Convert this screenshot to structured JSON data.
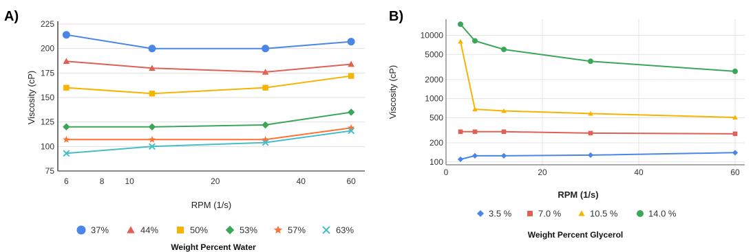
{
  "chart_data": [
    {
      "panel_label": "A)",
      "type": "line",
      "x_scale": "log",
      "xlabel": "RPM (1/s)",
      "ylabel": "Viscosity (cP)",
      "xlim": [
        5.6,
        67
      ],
      "ylim": [
        75,
        225
      ],
      "x_ticks": [
        6,
        8,
        10,
        20,
        40,
        60
      ],
      "y_ticks": [
        75,
        100,
        125,
        150,
        175,
        200,
        225
      ],
      "grid": true,
      "legend_position": "bottom",
      "legend_title": "Weight Percent Water",
      "series": [
        {
          "name": "37%",
          "color": "#4a86e8",
          "marker": "circle",
          "x": [
            6,
            12,
            30,
            60
          ],
          "y": [
            214,
            200,
            200,
            207
          ]
        },
        {
          "name": "44%",
          "color": "#e06055",
          "marker": "triangle",
          "x": [
            6,
            12,
            30,
            60
          ],
          "y": [
            187,
            180,
            176,
            184
          ]
        },
        {
          "name": "50%",
          "color": "#f6b400",
          "marker": "square",
          "x": [
            6,
            12,
            30,
            60
          ],
          "y": [
            160,
            154,
            160,
            172
          ]
        },
        {
          "name": "53%",
          "color": "#3aa757",
          "marker": "diamond",
          "x": [
            6,
            12,
            30,
            60
          ],
          "y": [
            120,
            120,
            122,
            135
          ]
        },
        {
          "name": "57%",
          "color": "#ff7031",
          "marker": "star",
          "x": [
            6,
            12,
            30,
            60
          ],
          "y": [
            107,
            107,
            107,
            119
          ]
        },
        {
          "name": "63%",
          "color": "#46bdc6",
          "marker": "cross",
          "x": [
            6,
            12,
            30,
            60
          ],
          "y": [
            93,
            100,
            104,
            116
          ]
        }
      ]
    },
    {
      "panel_label": "B)",
      "type": "line",
      "y_scale": "log",
      "xlabel": "RPM (1/s)",
      "ylabel": "Viscosity (cP)",
      "xlim": [
        0,
        62
      ],
      "ylim": [
        90,
        18000
      ],
      "x_ticks": [
        0,
        20,
        40,
        60
      ],
      "y_ticks": [
        100,
        200,
        500,
        1000,
        2000,
        5000,
        10000
      ],
      "grid": true,
      "legend_position": "bottom",
      "legend_title": "Weight Percent Glycerol",
      "series": [
        {
          "name": "3.5 %",
          "color": "#4a86e8",
          "marker": "diamond",
          "x": [
            3,
            6,
            12,
            30,
            60
          ],
          "y": [
            110,
            125,
            125,
            128,
            140
          ]
        },
        {
          "name": "7.0 %",
          "color": "#e06055",
          "marker": "square",
          "x": [
            3,
            6,
            12,
            30,
            60
          ],
          "y": [
            300,
            300,
            300,
            285,
            278
          ]
        },
        {
          "name": "10.5 %",
          "color": "#f6b400",
          "marker": "triangle",
          "x": [
            3,
            6,
            12,
            30,
            60
          ],
          "y": [
            8000,
            680,
            640,
            580,
            505
          ]
        },
        {
          "name": "14.0 %",
          "color": "#3aa757",
          "marker": "circle",
          "x": [
            3,
            6,
            12,
            30,
            60
          ],
          "y": [
            15000,
            8200,
            6000,
            3900,
            2700
          ]
        }
      ]
    }
  ]
}
